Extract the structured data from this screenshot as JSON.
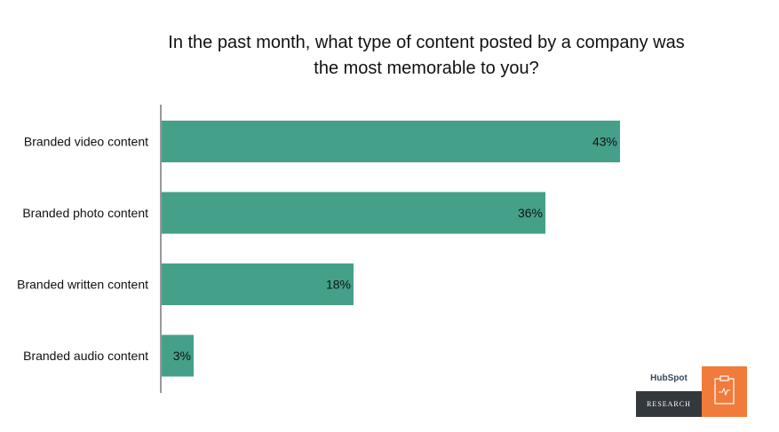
{
  "chart_data": {
    "type": "bar",
    "orientation": "horizontal",
    "title": "In the past month, what type of content posted by a company was the most memorable to you?",
    "categories": [
      "Branded video content",
      "Branded photo content",
      "Branded written content",
      "Branded audio content"
    ],
    "values": [
      43,
      36,
      18,
      3
    ],
    "value_labels": [
      "43%",
      "36%",
      "18%",
      "3%"
    ],
    "xlim": [
      0,
      50
    ],
    "grid": false,
    "bar_color": "#45a08a"
  },
  "logo": {
    "brand": "HubSpot",
    "label": "RESEARCH",
    "accent": "#f07b3a",
    "dark": "#33383d",
    "icon": "clipboard-chart-icon"
  }
}
